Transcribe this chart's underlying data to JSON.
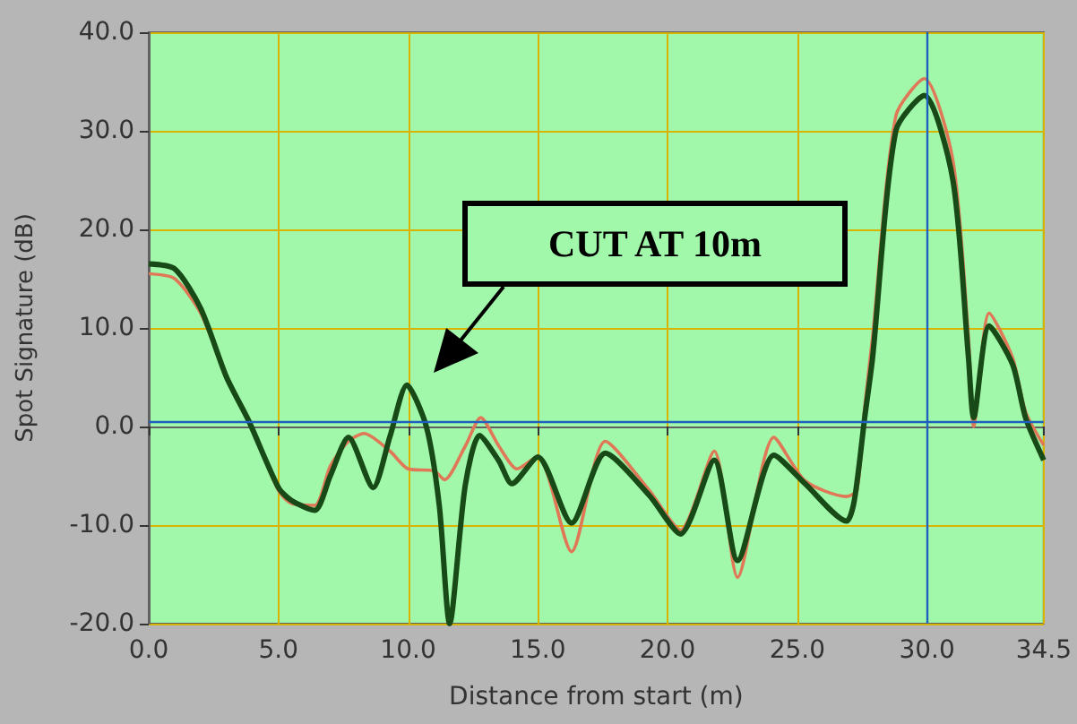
{
  "chart_data": {
    "type": "line",
    "xlabel": "Distance from start (m)",
    "ylabel": "Spot Signature (dB)",
    "xlim": [
      0,
      34.5
    ],
    "ylim": [
      -20,
      40
    ],
    "xticks": [
      {
        "value": 0,
        "label": "0.0"
      },
      {
        "value": 5,
        "label": "5.0"
      },
      {
        "value": 10,
        "label": "10.0"
      },
      {
        "value": 15,
        "label": "15.0"
      },
      {
        "value": 20,
        "label": "20.0"
      },
      {
        "value": 25,
        "label": "25.0"
      },
      {
        "value": 30,
        "label": "30.0"
      },
      {
        "value": 34.5,
        "label": "34.5"
      }
    ],
    "yticks": [
      {
        "value": -20,
        "label": "-20.0"
      },
      {
        "value": -10,
        "label": "-10.0"
      },
      {
        "value": 0,
        "label": "0.0"
      },
      {
        "value": 10,
        "label": "10.0"
      },
      {
        "value": 20,
        "label": "20.0"
      },
      {
        "value": 30,
        "label": "30.0"
      },
      {
        "value": 40,
        "label": "40.0"
      }
    ],
    "grid": true,
    "marker": "none",
    "line_style": "solid",
    "series": [
      {
        "color": "#e07858",
        "x": [
          0,
          1,
          2,
          3,
          3.85,
          5,
          5.5,
          6.4,
          7,
          7.7,
          8.3,
          9.3,
          10,
          11,
          11.4,
          12.2,
          12.8,
          13.5,
          14.2,
          15,
          16.3,
          17.6,
          19.3,
          20.5,
          21.8,
          22.7,
          24.1,
          25.3,
          26.9,
          27.3,
          27.6,
          27.9,
          28.8,
          29.9,
          31.0,
          31.6,
          31.8,
          32.4,
          33.3,
          33.8,
          34.5
        ],
        "values": [
          15.5,
          15,
          11.5,
          5,
          0.6,
          -6.5,
          -7.8,
          -8,
          -4,
          -1.5,
          -0.7,
          -2.5,
          -4.3,
          -4.5,
          -5.4,
          -2,
          0.9,
          -2,
          -4.3,
          -3,
          -12.7,
          -1.5,
          -6.5,
          -10.5,
          -2.5,
          -15.3,
          -1.1,
          -5.5,
          -7.1,
          -6.5,
          2,
          9,
          31.5,
          35.3,
          27,
          9,
          0,
          11.5,
          7,
          1.5,
          -1.9
        ]
      },
      {
        "color": "#174a17",
        "x": [
          0,
          1,
          2,
          3,
          3.85,
          5,
          5.5,
          6.4,
          7,
          7.7,
          8.65,
          9.3,
          9.95,
          10.7,
          11.2,
          11.6,
          12.2,
          12.75,
          13.5,
          14.0,
          15.0,
          16.3,
          17.6,
          19.3,
          20.5,
          21.8,
          22.7,
          24.1,
          25.3,
          26.9,
          27.2,
          27.6,
          27.9,
          28.8,
          29.9,
          31.0,
          31.6,
          31.8,
          32.4,
          33.3,
          33.8,
          34.5
        ],
        "values": [
          16.5,
          16,
          12,
          5,
          0.6,
          -6.2,
          -7.5,
          -8.5,
          -5,
          -1.1,
          -6.2,
          -1,
          4.2,
          0,
          -8,
          -20,
          -6,
          -0.9,
          -3.5,
          -5.8,
          -3.1,
          -9.8,
          -2.7,
          -7,
          -10.9,
          -3.4,
          -13.6,
          -2.9,
          -5.8,
          -9.6,
          -7.5,
          0.9,
          6.9,
          30,
          33.6,
          25,
          7,
          0.9,
          10.2,
          6.3,
          0.9,
          -3.4
        ]
      }
    ],
    "ref_lines": [
      {
        "axis": "y",
        "value": 0.5,
        "color": "#1f5fbf"
      },
      {
        "axis": "x",
        "value": 30,
        "color": "#1f5fbf"
      }
    ],
    "annotations": [
      "CUT AT 10m"
    ]
  }
}
